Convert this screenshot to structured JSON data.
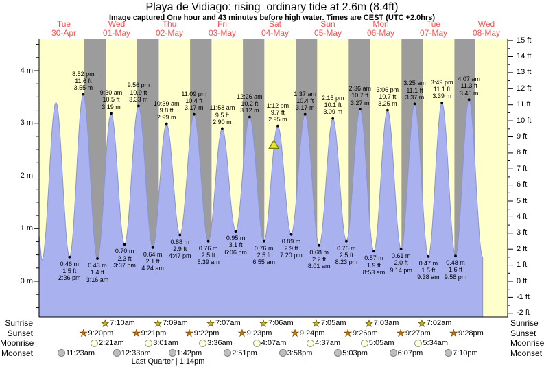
{
  "title": "Playa de Vidiago: rising  ordinary tide at 2.6m (8.4ft)",
  "subtitle": "Image captured One hour and 43 minutes before high water. Times are CEST (UTC +2.0hrs)",
  "colors": {
    "plot_bg": "#FFFFCC",
    "night_band": "#9C9C9C",
    "tide_fill": "#A9B2EE",
    "tide_edge": "#8893D8",
    "day_label": "#FF5050",
    "marker_fill": "#E6E630",
    "marker_border": "#7A7A00",
    "sunrise_star": "#D4B830",
    "sunrise_star_border": "#6B5B00",
    "sunset_star": "#C97C0C",
    "sunset_star_border": "#7A4400",
    "moonrise_fill": "#FFFFD8",
    "moonrise_border": "#9A9A9A",
    "moonset_fill": "#BFBFBF",
    "moonset_border": "#808080"
  },
  "days": [
    {
      "name": "Tue",
      "date": "30-Apr"
    },
    {
      "name": "Wed",
      "date": "01-May"
    },
    {
      "name": "Thu",
      "date": "02-May"
    },
    {
      "name": "Fri",
      "date": "03-May"
    },
    {
      "name": "Sat",
      "date": "04-May"
    },
    {
      "name": "Sun",
      "date": "05-May"
    },
    {
      "name": "Mon",
      "date": "06-May"
    },
    {
      "name": "Tue",
      "date": "07-May"
    },
    {
      "name": "Wed",
      "date": "08-May"
    }
  ],
  "left_axis": {
    "labels": [
      "4 m",
      "3 m",
      "2 m",
      "1 m",
      "0 m"
    ],
    "values": [
      4,
      3,
      2,
      1,
      0
    ]
  },
  "right_axis": {
    "labels": [
      "15 ft",
      "14 ft",
      "13 ft",
      "12 ft",
      "11 ft",
      "10 ft",
      "9 ft",
      "8 ft",
      "7 ft",
      "6 ft",
      "5 ft",
      "4 ft",
      "3 ft",
      "2 ft",
      "1 ft",
      "0 ft",
      "-1 ft",
      "-2 ft"
    ],
    "values": [
      15,
      14,
      13,
      12,
      11,
      10,
      9,
      8,
      7,
      6,
      5,
      4,
      3,
      2,
      1,
      0,
      -1,
      -2
    ]
  },
  "chart_data": {
    "type": "area",
    "title": "Playa de Vidiago: rising  ordinary tide at 2.6m (8.4ft)",
    "ylabel_left": "m",
    "ylabel_right": "ft",
    "ylim_left_m": [
      -0.7,
      4.6
    ],
    "ylim_right_ft": [
      -2.2,
      15.2
    ],
    "x_days": [
      "30-Apr",
      "01-May",
      "02-May",
      "03-May",
      "04-May",
      "05-May",
      "06-May",
      "07-May",
      "08-May"
    ],
    "tide_events": [
      {
        "day": 0,
        "kind": "low",
        "time": "2:36 pm",
        "height_m": 0.46,
        "height_ft": 1.5
      },
      {
        "day": 0,
        "kind": "high",
        "time": "8:52 pm",
        "height_m": 3.55,
        "height_ft": 11.6
      },
      {
        "day": 1,
        "kind": "low",
        "time": "3:16 am",
        "height_m": 0.43,
        "height_ft": 1.4
      },
      {
        "day": 1,
        "kind": "high",
        "time": "9:30 am",
        "height_m": 3.19,
        "height_ft": 10.5
      },
      {
        "day": 1,
        "kind": "low",
        "time": "3:37 pm",
        "height_m": 0.7,
        "height_ft": 2.3
      },
      {
        "day": 1,
        "kind": "high",
        "time": "9:56 pm",
        "height_m": 3.33,
        "height_ft": 10.9
      },
      {
        "day": 2,
        "kind": "low",
        "time": "4:24 am",
        "height_m": 0.64,
        "height_ft": 2.1
      },
      {
        "day": 2,
        "kind": "high",
        "time": "10:39 am",
        "height_m": 2.99,
        "height_ft": 9.8
      },
      {
        "day": 2,
        "kind": "low",
        "time": "4:47 pm",
        "height_m": 0.88,
        "height_ft": 2.9
      },
      {
        "day": 2,
        "kind": "high",
        "time": "11:09 pm",
        "height_m": 3.17,
        "height_ft": 10.4
      },
      {
        "day": 3,
        "kind": "low",
        "time": "5:39 am",
        "height_m": 0.76,
        "height_ft": 2.5
      },
      {
        "day": 3,
        "kind": "high",
        "time": "11:58 am",
        "height_m": 2.9,
        "height_ft": 9.5
      },
      {
        "day": 3,
        "kind": "low",
        "time": "6:06 pm",
        "height_m": 0.95,
        "height_ft": 3.1
      },
      {
        "day": 4,
        "kind": "high",
        "time": "12:26 am",
        "height_m": 3.12,
        "height_ft": 10.2
      },
      {
        "day": 4,
        "kind": "low",
        "time": "6:55 am",
        "height_m": 0.76,
        "height_ft": 2.5
      },
      {
        "day": 4,
        "kind": "high",
        "time": "1:12 pm",
        "height_m": 2.95,
        "height_ft": 9.7
      },
      {
        "day": 4,
        "kind": "low",
        "time": "7:20 pm",
        "height_m": 0.89,
        "height_ft": 2.9
      },
      {
        "day": 5,
        "kind": "high",
        "time": "1:37 am",
        "height_m": 3.17,
        "height_ft": 10.4
      },
      {
        "day": 5,
        "kind": "low",
        "time": "8:01 am",
        "height_m": 0.68,
        "height_ft": 2.2
      },
      {
        "day": 5,
        "kind": "high",
        "time": "2:15 pm",
        "height_m": 3.09,
        "height_ft": 10.1
      },
      {
        "day": 5,
        "kind": "low",
        "time": "8:23 pm",
        "height_m": 0.76,
        "height_ft": 2.5
      },
      {
        "day": 6,
        "kind": "high",
        "time": "2:36 am",
        "height_m": 3.27,
        "height_ft": 10.7
      },
      {
        "day": 6,
        "kind": "low",
        "time": "8:53 am",
        "height_m": 0.57,
        "height_ft": 1.9
      },
      {
        "day": 6,
        "kind": "high",
        "time": "3:06 pm",
        "height_m": 3.25,
        "height_ft": 10.7
      },
      {
        "day": 6,
        "kind": "low",
        "time": "9:14 pm",
        "height_m": 0.61,
        "height_ft": 2.0
      },
      {
        "day": 7,
        "kind": "high",
        "time": "3:25 am",
        "height_m": 3.37,
        "height_ft": 11.1
      },
      {
        "day": 7,
        "kind": "low",
        "time": "9:38 am",
        "height_m": 0.47,
        "height_ft": 1.5
      },
      {
        "day": 7,
        "kind": "high",
        "time": "3:49 pm",
        "height_m": 3.39,
        "height_ft": 11.1
      },
      {
        "day": 7,
        "kind": "low",
        "time": "9:58 pm",
        "height_m": 0.48,
        "height_ft": 1.6
      },
      {
        "day": 8,
        "kind": "high",
        "time": "4:07 am",
        "height_m": 3.45,
        "height_ft": 11.3
      }
    ],
    "edge_points_start": [
      {
        "day": 0,
        "time": "0:45 am",
        "height_m": 0.85,
        "estimated": true
      },
      {
        "day": 0,
        "time": "2:05 am",
        "height_m": 0.4,
        "estimated": true
      },
      {
        "day": 0,
        "time": "8:26 am",
        "height_m": 3.4,
        "estimated": true
      }
    ],
    "edge_points_end": [
      {
        "day": 8,
        "time": "10:21 am",
        "height_m": 0.45,
        "estimated": true
      }
    ],
    "current_marker": {
      "height_m": 2.6,
      "height_label": "2.6m (8.4ft)",
      "minutes_before_next_high": 103,
      "next_high_time": "1:12 pm",
      "next_high_day": 4
    }
  },
  "sun_moon": {
    "row_labels": [
      "Sunrise",
      "Sunset",
      "Moonrise",
      "Moonset"
    ],
    "sunrise": [
      {
        "day": 1,
        "time": "7:10am"
      },
      {
        "day": 2,
        "time": "7:09am"
      },
      {
        "day": 3,
        "time": "7:07am"
      },
      {
        "day": 4,
        "time": "7:06am"
      },
      {
        "day": 5,
        "time": "7:05am"
      },
      {
        "day": 6,
        "time": "7:03am"
      },
      {
        "day": 7,
        "time": "7:02am"
      }
    ],
    "sunset": [
      {
        "day": 0,
        "time": "9:20pm"
      },
      {
        "day": 1,
        "time": "9:21pm"
      },
      {
        "day": 2,
        "time": "9:22pm"
      },
      {
        "day": 3,
        "time": "9:23pm"
      },
      {
        "day": 4,
        "time": "9:24pm"
      },
      {
        "day": 5,
        "time": "9:26pm"
      },
      {
        "day": 6,
        "time": "9:27pm"
      },
      {
        "day": 7,
        "time": "9:28pm"
      }
    ],
    "moonrise": [
      {
        "day": 1,
        "time": "2:21am"
      },
      {
        "day": 2,
        "time": "3:01am"
      },
      {
        "day": 3,
        "time": "3:36am"
      },
      {
        "day": 4,
        "time": "4:07am"
      },
      {
        "day": 5,
        "time": "4:37am"
      },
      {
        "day": 6,
        "time": "5:05am"
      },
      {
        "day": 7,
        "time": "5:34am"
      }
    ],
    "moonset": [
      {
        "day": 0,
        "time": "11:23am"
      },
      {
        "day": 1,
        "time": "12:33pm"
      },
      {
        "day": 2,
        "time": "1:42pm"
      },
      {
        "day": 3,
        "time": "2:51pm"
      },
      {
        "day": 4,
        "time": "3:58pm"
      },
      {
        "day": 5,
        "time": "5:03pm"
      },
      {
        "day": 6,
        "time": "6:07pm"
      },
      {
        "day": 7,
        "time": "7:10pm"
      }
    ],
    "moon_phase": "Last Quarter | 1:14pm"
  }
}
